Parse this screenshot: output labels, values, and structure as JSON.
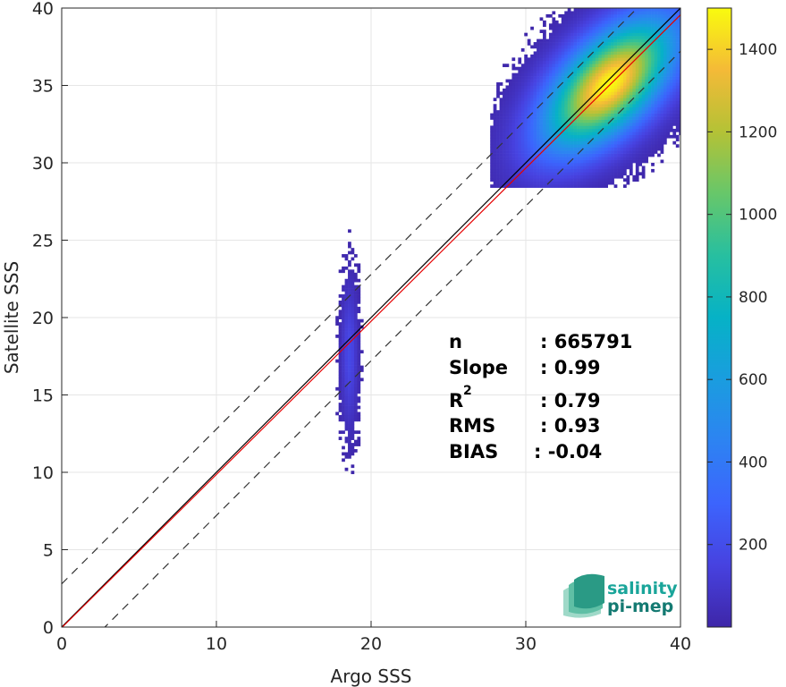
{
  "chart_data": {
    "type": "heatmap",
    "xlabel": "Argo SSS",
    "ylabel": "Satellite SSS",
    "xlim": [
      0,
      40
    ],
    "ylim": [
      0,
      40
    ],
    "x_ticks": [
      "0",
      "10",
      "20",
      "30",
      "40"
    ],
    "y_ticks": [
      "0",
      "5",
      "10",
      "15",
      "20",
      "25",
      "30",
      "35",
      "40"
    ],
    "grid": true,
    "colorbar": {
      "colormap": "parula",
      "range": [
        0,
        1500
      ],
      "ticks": [
        "200",
        "400",
        "600",
        "800",
        "1000",
        "1200",
        "1400"
      ]
    },
    "reference_lines": [
      {
        "name": "1:1 line",
        "style": "solid",
        "color": "#000000",
        "slope": 1.0,
        "intercept": 0.0
      },
      {
        "name": "regression fit",
        "style": "solid",
        "color": "#e60000",
        "slope": 0.99,
        "intercept": -0.04
      },
      {
        "name": "upper bound",
        "style": "dashed",
        "color": "#333333",
        "slope": 1.0,
        "intercept": 2.79
      },
      {
        "name": "lower bound",
        "style": "dashed",
        "color": "#333333",
        "slope": 1.0,
        "intercept": -2.79
      }
    ],
    "density_clusters": [
      {
        "x_center": 35.3,
        "y_center": 35.0,
        "peak_count": 1500,
        "spread_x": 2.5,
        "spread_y": 2.2
      },
      {
        "x_center": 18.5,
        "y_center": 17.5,
        "peak_count": 180,
        "spread_x": 0.35,
        "spread_y": 3.0
      }
    ],
    "stats": [
      {
        "label": "n",
        "value": ": 665791"
      },
      {
        "label": "Slope",
        "value": ": 0.99"
      },
      {
        "label": "R",
        "superscript": "2",
        "value": ": 0.79"
      },
      {
        "label": "RMS",
        "value": ": 0.93"
      },
      {
        "label": "BIAS",
        "value": ": -0.04"
      }
    ]
  },
  "logo": {
    "line1": "salinity",
    "line2": "pi-mep"
  },
  "colors": {
    "regression": "#e60000",
    "grid": "#e6e6e6",
    "axis": "#262626"
  }
}
